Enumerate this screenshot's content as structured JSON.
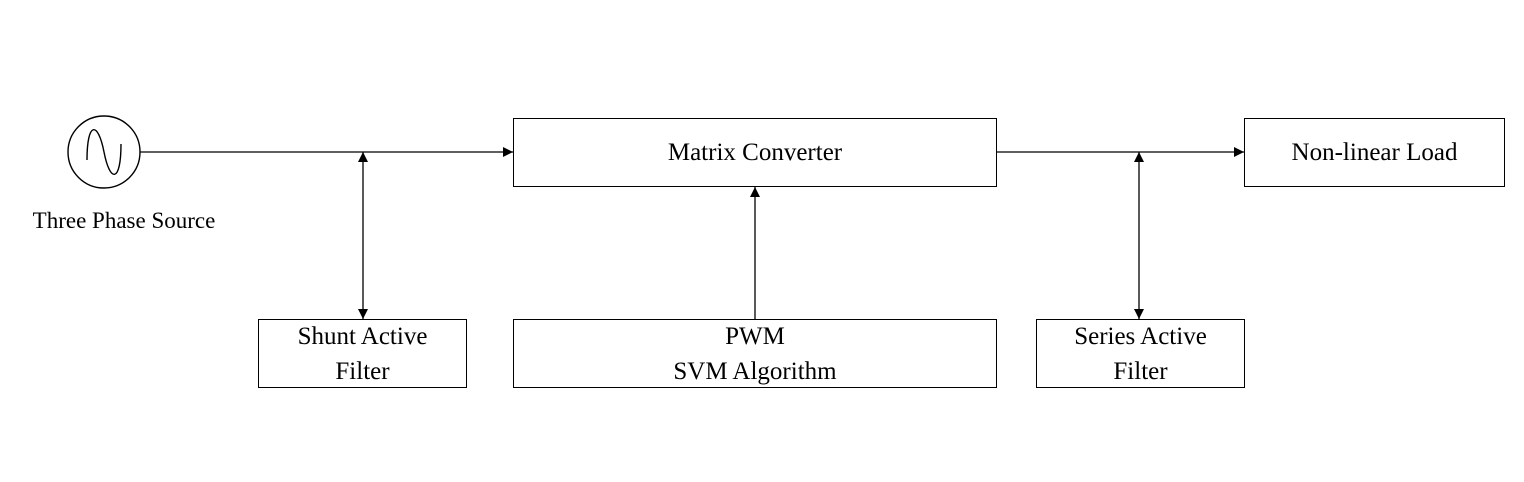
{
  "source": {
    "label": "Three Phase Source"
  },
  "blocks": {
    "matrix_converter": "Matrix Converter",
    "nonlinear_load": "Non-linear Load",
    "shunt_filter": {
      "line1": "Shunt Active",
      "line2": "Filter"
    },
    "pwm": {
      "line1": "PWM",
      "line2": "SVM Algorithm"
    },
    "series_filter": {
      "line1": "Series Active",
      "line2": "Filter"
    }
  },
  "icons": {
    "source": "ac-sine-source-icon"
  },
  "colors": {
    "stroke": "#000000",
    "background": "#ffffff"
  }
}
